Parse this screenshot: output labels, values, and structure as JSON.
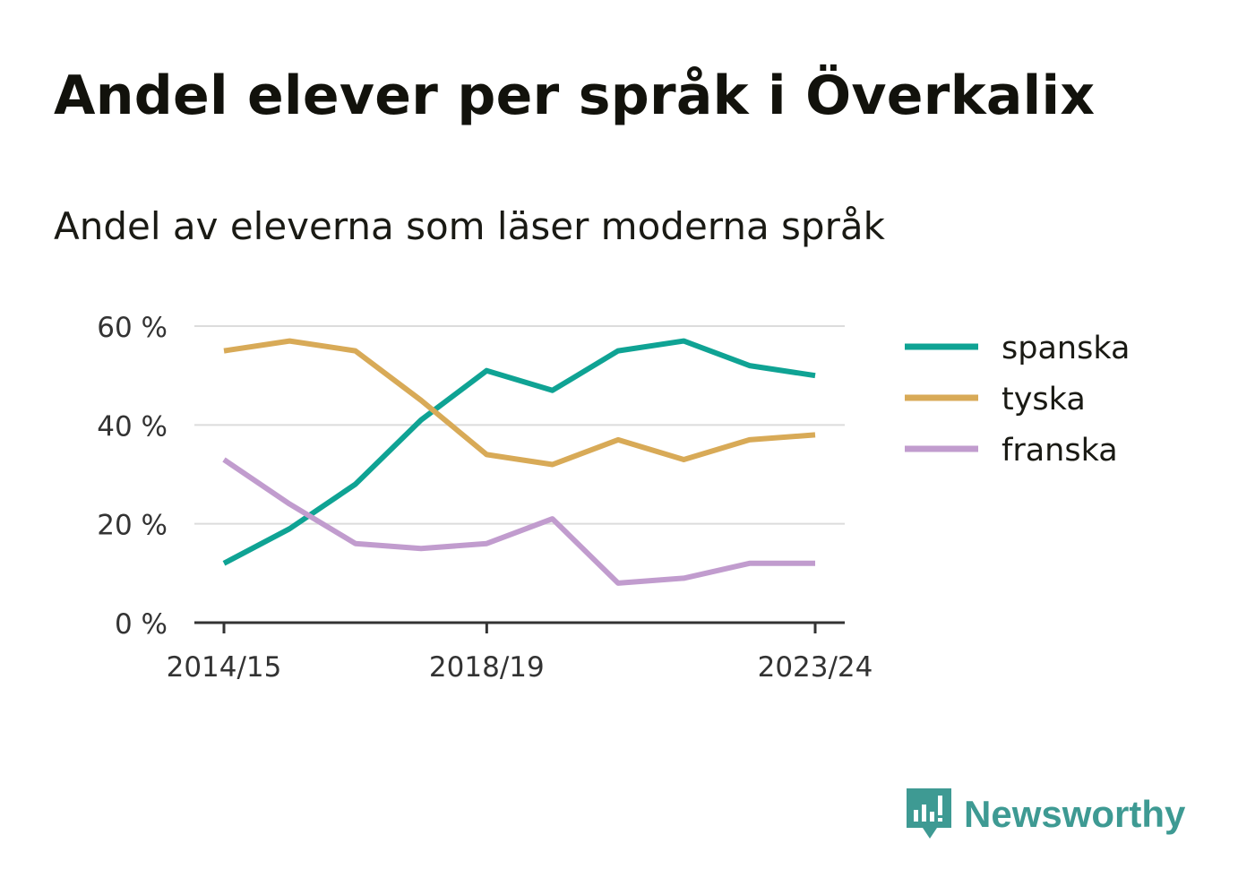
{
  "title": "Andel elever per språk i Överkalix",
  "subtitle": "Andel av eleverna som läser moderna språk",
  "brand": {
    "name": "Newsworthy",
    "icon": "newsworthy-logo-icon",
    "color": "#3e9a93"
  },
  "chart_data": {
    "type": "line",
    "title": "Andel elever per språk i Överkalix",
    "subtitle": "Andel av eleverna som läser moderna språk",
    "x": [
      "2014/15",
      "2015/16",
      "2016/17",
      "2017/18",
      "2018/19",
      "2019/20",
      "2020/21",
      "2021/22",
      "2022/23",
      "2023/24"
    ],
    "xticks": [
      "2014/15",
      "2018/19",
      "2023/24"
    ],
    "ylim": [
      0,
      60
    ],
    "yticks": [
      0,
      20,
      40,
      60
    ],
    "ytick_labels": [
      "0 %",
      "20 %",
      "40 %",
      "60 %"
    ],
    "grid": true,
    "legend_position": "right",
    "series": [
      {
        "name": "spanska",
        "color": "#0fa394",
        "values": [
          12,
          19,
          28,
          41,
          51,
          47,
          55,
          57,
          52,
          50
        ]
      },
      {
        "name": "tyska",
        "color": "#d8aa57",
        "values": [
          55,
          57,
          55,
          45,
          34,
          32,
          37,
          33,
          37,
          38
        ]
      },
      {
        "name": "franska",
        "color": "#c19cce",
        "values": [
          33,
          24,
          16,
          15,
          16,
          21,
          8,
          9,
          12,
          12
        ]
      }
    ]
  }
}
